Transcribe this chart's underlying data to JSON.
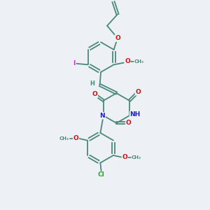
{
  "bg_color": "#edf0f4",
  "bond_color": "#4a8a7a",
  "N_color": "#2222bb",
  "O_color": "#cc1111",
  "Cl_color": "#22aa22",
  "I_color": "#cc33cc",
  "line_width": 1.3,
  "font_size": 6.5,
  "figsize": [
    3.0,
    3.0
  ],
  "dpi": 100,
  "xlim": [
    0,
    10
  ],
  "ylim": [
    0,
    10
  ]
}
